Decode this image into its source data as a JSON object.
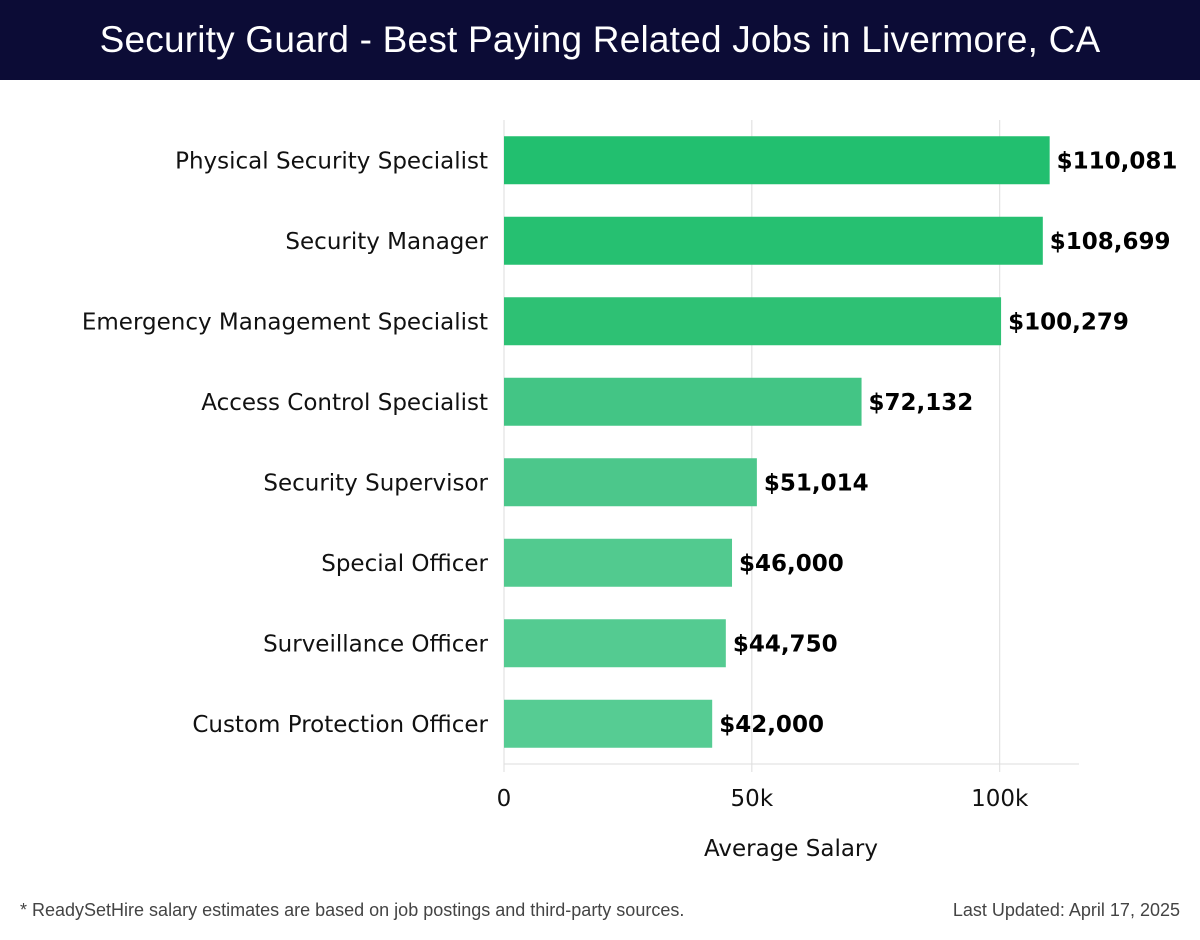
{
  "header": {
    "title": "Security Guard - Best Paying Related Jobs in Livermore, CA"
  },
  "chart_data": {
    "type": "bar",
    "orientation": "horizontal",
    "title": "Security Guard - Best Paying Related Jobs in Livermore, CA",
    "xlabel": "Average Salary",
    "ylabel": "",
    "categories": [
      "Physical Security Specialist",
      "Security Manager",
      "Emergency Management Specialist",
      "Access Control Specialist",
      "Security Supervisor",
      "Special Officer",
      "Surveillance Officer",
      "Custom Protection Officer"
    ],
    "values": [
      110081,
      108699,
      100279,
      72132,
      51014,
      46000,
      44750,
      42000
    ],
    "value_labels": [
      "$110,081",
      "$108,699",
      "$100,279",
      "$72,132",
      "$51,014",
      "$46,000",
      "$44,750",
      "$42,000"
    ],
    "xlim": [
      0,
      116000
    ],
    "xticks": [
      0,
      50000,
      100000
    ],
    "xtick_labels": [
      "0",
      "50k",
      "100k"
    ],
    "grid": true,
    "colors": [
      "#22bf6f",
      "#26c071",
      "#2ec174",
      "#43c585",
      "#4cc78b",
      "#52ca8f",
      "#54cb91",
      "#56cc93"
    ]
  },
  "footer": {
    "note": "* ReadySetHire salary estimates are based on job postings and third-party sources.",
    "updated": "Last Updated: April 17, 2025"
  }
}
